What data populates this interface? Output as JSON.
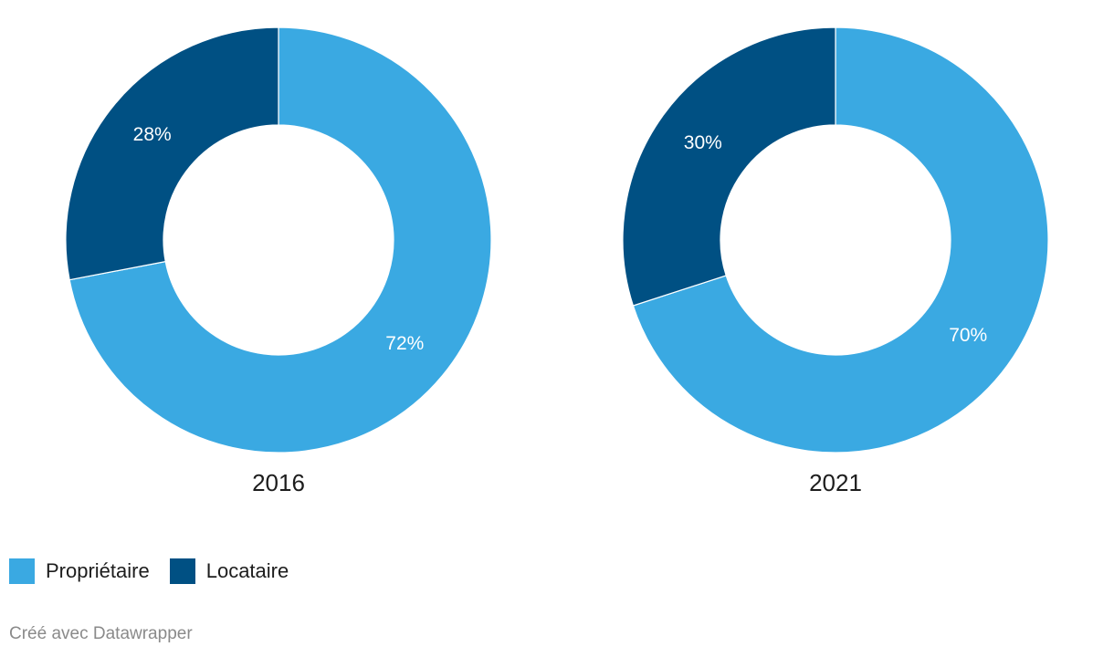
{
  "chart_data": [
    {
      "type": "pie",
      "title": "2016",
      "categories": [
        "Propriétaire",
        "Locataire"
      ],
      "values": [
        72,
        28
      ],
      "labels": [
        "72%",
        "28%"
      ],
      "donut": true,
      "legend": "bottom-left"
    },
    {
      "type": "pie",
      "title": "2021",
      "categories": [
        "Propriétaire",
        "Locataire"
      ],
      "values": [
        70,
        30
      ],
      "labels": [
        "70%",
        "30%"
      ],
      "donut": true,
      "legend": "bottom-left"
    }
  ],
  "legend": {
    "items": [
      {
        "label": "Propriétaire",
        "color": "#3aa9e2"
      },
      {
        "label": "Locataire",
        "color": "#005083"
      }
    ]
  },
  "credit": "Créé avec Datawrapper"
}
